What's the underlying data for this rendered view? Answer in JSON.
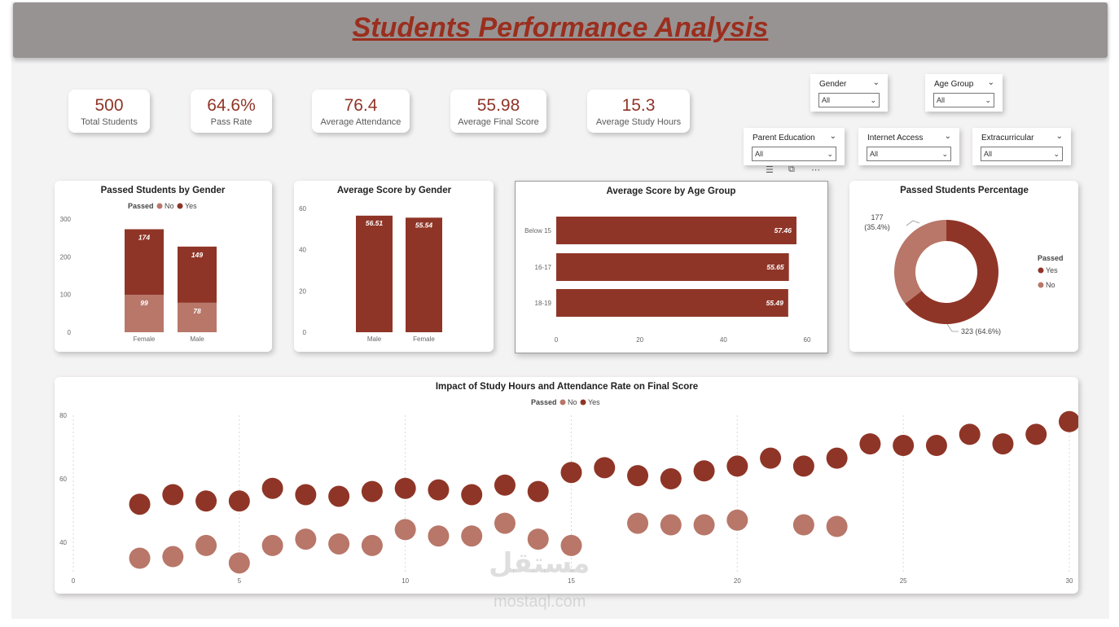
{
  "header": {
    "title": "Students Performance Analysis"
  },
  "kpis": [
    {
      "value": "500",
      "label": "Total Students"
    },
    {
      "value": "64.6%",
      "label": "Pass Rate"
    },
    {
      "value": "76.4",
      "label": "Average Attendance"
    },
    {
      "value": "55.98",
      "label": "Average Final Score"
    },
    {
      "value": "15.3",
      "label": "Average Study Hours"
    }
  ],
  "slicers": [
    {
      "title": "Gender",
      "value": "All"
    },
    {
      "title": "Age Group",
      "value": "All"
    },
    {
      "title": "Parent Education",
      "value": "All"
    },
    {
      "title": "Internet Access",
      "value": "All"
    },
    {
      "title": "Extracurricular",
      "value": "All"
    }
  ],
  "colors": {
    "yes": "#8f3527",
    "no": "#b87769",
    "accent": "#9b2e1e",
    "header_bg": "#979392"
  },
  "watermark": {
    "arabic": "مستقل",
    "latin": "mostaql.com"
  },
  "chart_data": [
    {
      "type": "bar",
      "title": "Passed Students by Gender",
      "stacked": true,
      "legend_title": "Passed",
      "categories": [
        "Female",
        "Male"
      ],
      "series": [
        {
          "name": "No",
          "values": [
            99,
            78
          ]
        },
        {
          "name": "Yes",
          "values": [
            174,
            149
          ]
        }
      ],
      "ylim": [
        0,
        300
      ],
      "yticks": [
        0,
        100,
        200,
        300
      ]
    },
    {
      "type": "bar",
      "title": "Average Score by Gender",
      "categories": [
        "Male",
        "Female"
      ],
      "values": [
        56.51,
        55.54
      ],
      "ylim": [
        0,
        60
      ],
      "yticks": [
        0,
        20,
        40,
        60
      ]
    },
    {
      "type": "bar",
      "orientation": "horizontal",
      "title": "Average Score by Age Group",
      "categories": [
        "Below 15",
        "16-17",
        "18-19"
      ],
      "values": [
        57.46,
        55.65,
        55.49
      ],
      "xlim": [
        0,
        60
      ],
      "xticks": [
        0,
        20,
        40,
        60
      ]
    },
    {
      "type": "pie",
      "donut": true,
      "title": "Passed Students Percentage",
      "legend_title": "Passed",
      "slices": [
        {
          "name": "Yes",
          "value": 323,
          "label": "323 (64.6%)"
        },
        {
          "name": "No",
          "value": 177,
          "label_line1": "177",
          "label_line2": "(35.4%)"
        }
      ]
    },
    {
      "type": "scatter",
      "title": "Impact of Study Hours and Attendance Rate on Final Score",
      "legend_title": "Passed",
      "xlim": [
        0,
        30
      ],
      "ylim": [
        30,
        80
      ],
      "xticks": [
        0,
        5,
        10,
        15,
        20,
        25,
        30
      ],
      "yticks": [
        40,
        60,
        80
      ],
      "series": [
        {
          "name": "No",
          "points": [
            [
              2,
              35
            ],
            [
              3,
              35.5
            ],
            [
              4,
              39
            ],
            [
              5,
              33.5
            ],
            [
              6,
              39
            ],
            [
              7,
              41
            ],
            [
              8,
              39.5
            ],
            [
              9,
              39
            ],
            [
              10,
              44
            ],
            [
              11,
              42
            ],
            [
              12,
              42
            ],
            [
              13,
              46
            ],
            [
              14,
              41
            ],
            [
              15,
              39
            ],
            [
              17,
              46
            ],
            [
              18,
              45.5
            ],
            [
              19,
              45.5
            ],
            [
              20,
              47
            ],
            [
              22,
              45.5
            ],
            [
              23,
              45
            ]
          ]
        },
        {
          "name": "Yes",
          "points": [
            [
              2,
              52
            ],
            [
              3,
              55
            ],
            [
              4,
              53
            ],
            [
              5,
              53
            ],
            [
              6,
              57
            ],
            [
              7,
              55
            ],
            [
              8,
              54.5
            ],
            [
              9,
              56
            ],
            [
              10,
              57
            ],
            [
              11,
              56.5
            ],
            [
              12,
              55
            ],
            [
              13,
              58
            ],
            [
              14,
              56
            ],
            [
              15,
              62
            ],
            [
              16,
              63.5
            ],
            [
              17,
              61
            ],
            [
              18,
              60
            ],
            [
              19,
              62.5
            ],
            [
              20,
              64
            ],
            [
              21,
              66.5
            ],
            [
              22,
              64
            ],
            [
              23,
              66.5
            ],
            [
              24,
              71
            ],
            [
              25,
              70.5
            ],
            [
              26,
              70.5
            ],
            [
              27,
              74
            ],
            [
              28,
              71
            ],
            [
              29,
              74
            ],
            [
              30,
              78
            ]
          ]
        }
      ]
    }
  ]
}
